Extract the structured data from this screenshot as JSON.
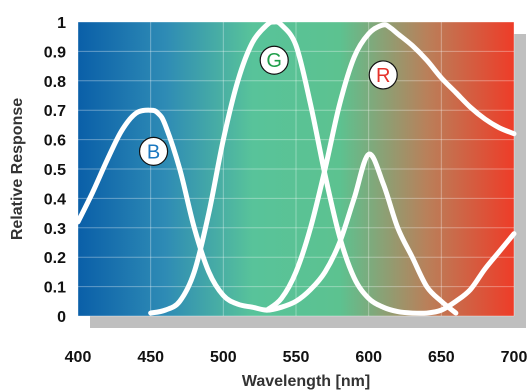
{
  "chart_data": {
    "type": "line",
    "title": "",
    "xlabel": "Wavelength [nm]",
    "ylabel": "Relative Response",
    "xlim": [
      400,
      700
    ],
    "ylim": [
      0,
      1
    ],
    "xticks": [
      "400",
      "450",
      "500",
      "550",
      "600",
      "650",
      "700"
    ],
    "yticks": [
      "0",
      "0.1",
      "0.2",
      "0.3",
      "0.4",
      "0.5",
      "0.6",
      "0.7",
      "0.8",
      "0.9",
      "1"
    ],
    "grid": true,
    "background_gradient": [
      "#0a5fa8",
      "#2e8bb5",
      "#58c39a",
      "#5cc290",
      "#b9805a",
      "#ee3c28"
    ],
    "series": [
      {
        "name": "B",
        "color": "#ffffff",
        "label_color": "#1b78c0",
        "x": [
          400,
          410,
          420,
          430,
          440,
          450,
          455,
          460,
          470,
          480,
          490,
          500,
          510,
          520,
          530,
          540,
          550,
          560,
          570,
          580,
          590,
          600,
          610,
          620,
          630,
          640,
          650,
          660
        ],
        "y": [
          0.32,
          0.42,
          0.53,
          0.63,
          0.69,
          0.7,
          0.69,
          0.65,
          0.5,
          0.3,
          0.15,
          0.07,
          0.04,
          0.03,
          0.02,
          0.03,
          0.05,
          0.09,
          0.15,
          0.25,
          0.4,
          0.55,
          0.45,
          0.3,
          0.2,
          0.1,
          0.05,
          0.01
        ]
      },
      {
        "name": "G",
        "color": "#ffffff",
        "label_color": "#1f9e4a",
        "x": [
          450,
          460,
          470,
          480,
          490,
          500,
          510,
          520,
          530,
          535,
          540,
          550,
          560,
          570,
          580,
          590,
          600,
          610,
          620,
          630,
          640,
          650,
          660,
          670,
          680,
          690,
          700
        ],
        "y": [
          0.01,
          0.02,
          0.05,
          0.15,
          0.35,
          0.6,
          0.8,
          0.93,
          0.99,
          1.0,
          0.99,
          0.92,
          0.72,
          0.48,
          0.27,
          0.13,
          0.06,
          0.03,
          0.015,
          0.01,
          0.01,
          0.02,
          0.05,
          0.09,
          0.16,
          0.22,
          0.28
        ]
      },
      {
        "name": "R",
        "color": "#ffffff",
        "label_color": "#e5312a",
        "x": [
          530,
          540,
          550,
          560,
          570,
          580,
          590,
          600,
          610,
          615,
          620,
          630,
          640,
          650,
          660,
          670,
          680,
          690,
          700
        ],
        "y": [
          0.02,
          0.06,
          0.15,
          0.3,
          0.5,
          0.72,
          0.88,
          0.96,
          0.99,
          0.98,
          0.96,
          0.92,
          0.87,
          0.81,
          0.76,
          0.71,
          0.67,
          0.64,
          0.62
        ]
      }
    ],
    "annotations": [
      {
        "text": "B",
        "x": 452,
        "y": 0.56
      },
      {
        "text": "G",
        "x": 535,
        "y": 0.87
      },
      {
        "text": "R",
        "x": 610,
        "y": 0.82
      }
    ]
  }
}
